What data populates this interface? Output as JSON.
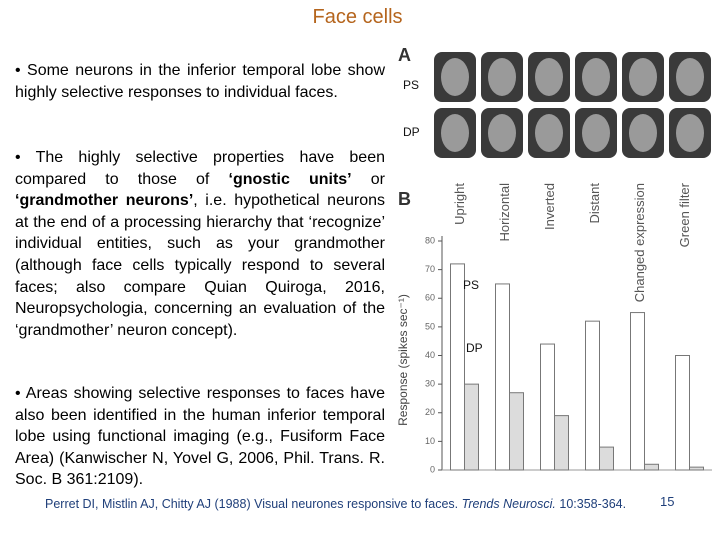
{
  "title": "Face cells",
  "bullets": [
    "• Some neurons in the inferior temporal lobe show highly selective responses to individual faces.",
    [
      "• The highly selective properties have been compared to those of ",
      "‘gnostic units’",
      " or ",
      "‘grandmother neurons’",
      ", i.e. hypothetical neurons at the end of a processing hierarchy that ‘recognize’ individual entities, such as your grandmother (although face cells typically respond to several faces; also compare Quian Quiroga, 2016, Neuropsychologia, concerning an evaluation of the ‘grandmother’ neuron concept)."
    ],
    "• Areas showing selective responses to faces have also been identified in the human inferior temporal lobe using functional imaging (e.g., Fusiform Face Area) (Kanwischer N, Yovel G, 2006, Phil. Trans. R. Soc. B 361:2109)."
  ],
  "figure": {
    "panel_a": {
      "label": "A",
      "rows": [
        "PS",
        "DP"
      ]
    },
    "panel_b": {
      "label": "B",
      "chart_data": {
        "type": "bar",
        "y_label": "Response (spikes sec⁻¹)",
        "categories": [
          "Upright",
          "Horizontal",
          "Inverted",
          "Distant",
          "Changed expression",
          "Green filter"
        ],
        "series": [
          {
            "name": "PS",
            "color": "#ffffff",
            "values": [
              72,
              65,
              44,
              52,
              55,
              40
            ]
          },
          {
            "name": "DP",
            "color": "#dcdcdc",
            "values": [
              30,
              27,
              19,
              8,
              2,
              1
            ]
          }
        ],
        "ylim": [
          0,
          80
        ],
        "yticks": [
          0,
          10,
          20,
          30,
          40,
          50,
          60,
          70,
          80
        ]
      }
    }
  },
  "citation": {
    "authors": "Perret DI, Mistlin AJ, Chitty AJ (1988) Visual neurones responsive to faces.",
    "journal": "Trends Neurosci.",
    "ref": "10:358-364."
  },
  "page_number": "15"
}
